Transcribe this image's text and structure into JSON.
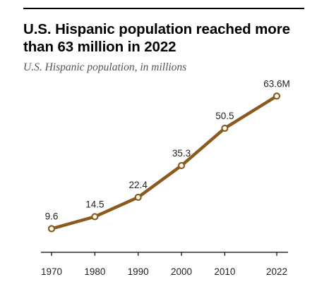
{
  "title": "U.S. Hispanic population reached more than 63 million in 2022",
  "subtitle": "U.S. Hispanic population, in millions",
  "colors": {
    "line": "#8B5A1E",
    "marker_fill": "#ffffff",
    "axis": "#000000"
  },
  "chart_data": {
    "type": "line",
    "title": "U.S. Hispanic population reached more than 63 million in 2022",
    "subtitle": "U.S. Hispanic population, in millions",
    "xlabel": "",
    "ylabel": "",
    "x": [
      1970,
      1980,
      1990,
      2000,
      2010,
      2022
    ],
    "x_tick_labels": [
      "1970",
      "1980",
      "1990",
      "2000",
      "2010",
      "2022"
    ],
    "series": [
      {
        "values": [
          9.6,
          14.5,
          22.4,
          35.3,
          50.5,
          63.6
        ],
        "data_labels": [
          "9.6",
          "14.5",
          "22.4",
          "35.3",
          "50.5",
          "63.6M"
        ]
      }
    ],
    "ylim": [
      0,
      70
    ],
    "grid": false,
    "legend": "none"
  }
}
